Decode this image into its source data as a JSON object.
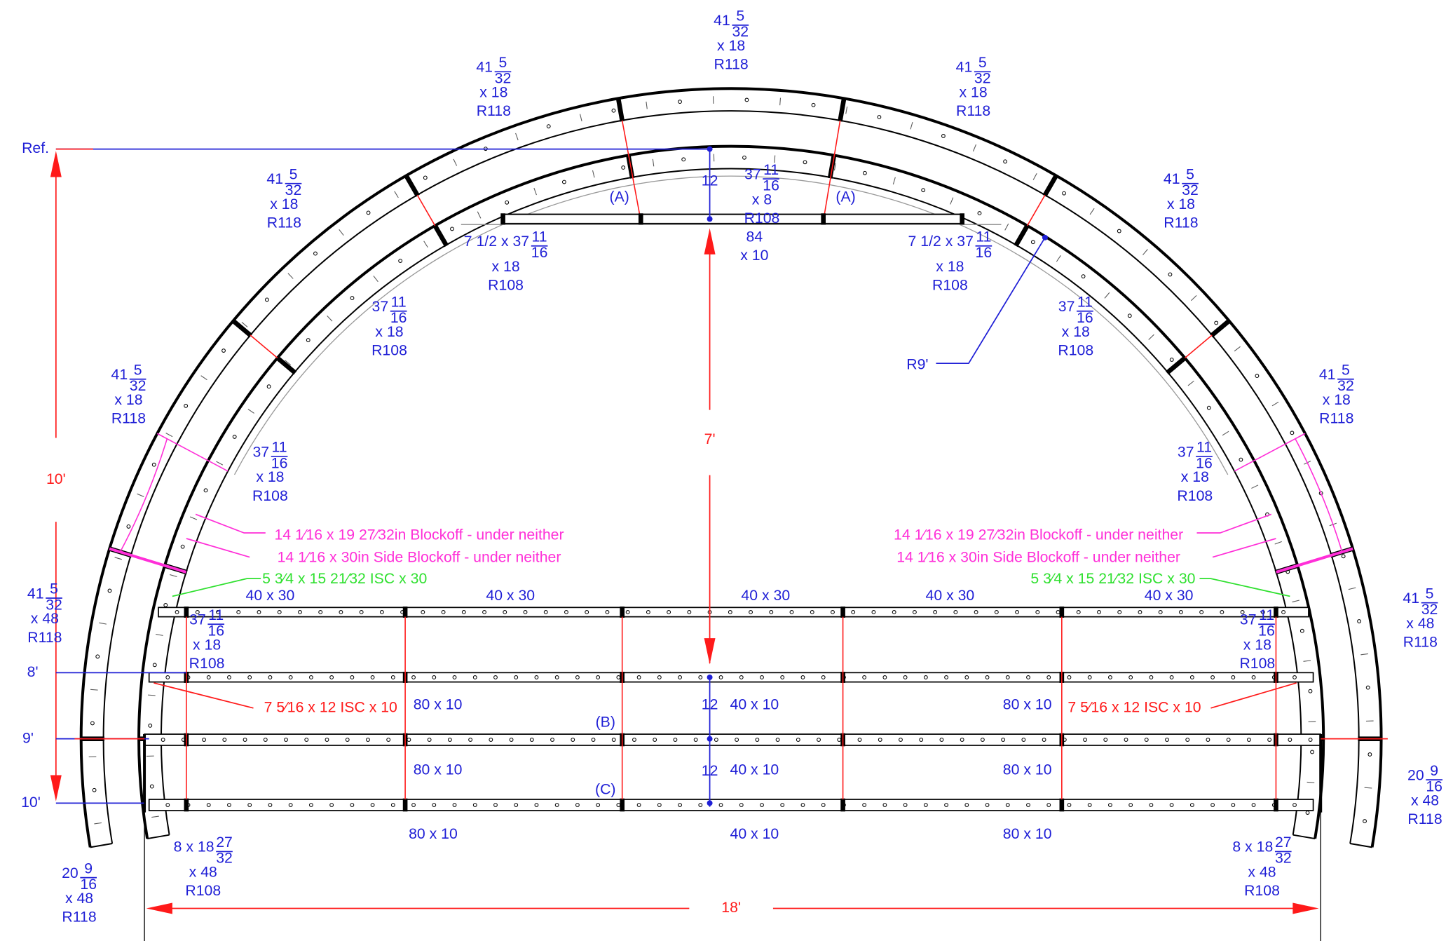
{
  "dimensions": {
    "ref": "Ref.",
    "levels": [
      "8'",
      "9'",
      "10'"
    ],
    "height": "10'",
    "rise": "7'",
    "span": "18'",
    "radius": "R9'"
  },
  "section_marks": [
    "(A)",
    "(A)",
    "(B)",
    "(C)"
  ],
  "segment_labels": [
    {
      "lines": [
        {
          "whole": "41",
          "num": "5",
          "den": "32"
        },
        "x 18",
        "R118"
      ]
    },
    {
      "lines": [
        {
          "whole": "41",
          "num": "5",
          "den": "32"
        },
        "x 18",
        "R118"
      ]
    },
    {
      "lines": [
        {
          "whole": "41",
          "num": "5",
          "den": "32"
        },
        "x 18",
        "R118"
      ]
    },
    {
      "lines": [
        {
          "whole": "41",
          "num": "5",
          "den": "32"
        },
        "x 18",
        "R118"
      ]
    },
    {
      "lines": [
        {
          "whole": "41",
          "num": "5",
          "den": "32"
        },
        "x 18",
        "R118"
      ]
    },
    {
      "lines": [
        {
          "whole": "41",
          "num": "5",
          "den": "32"
        },
        "x 18",
        "R118"
      ]
    },
    {
      "lines": [
        {
          "whole": "41",
          "num": "5",
          "den": "32"
        },
        "x 18",
        "R118"
      ]
    },
    {
      "lines": [
        {
          "whole": "41",
          "num": "5",
          "den": "32"
        },
        "x 48",
        "R118"
      ]
    },
    {
      "lines": [
        {
          "whole": "41",
          "num": "5",
          "den": "32"
        },
        "x 48",
        "R118"
      ]
    },
    {
      "lines": [
        {
          "whole": "20",
          "num": "9",
          "den": "16"
        },
        "x 48",
        "R118"
      ]
    },
    {
      "lines": [
        {
          "whole": "20",
          "num": "9",
          "den": "16"
        },
        "x 48",
        "R118"
      ]
    },
    {
      "lines": [
        {
          "whole": "37",
          "num": "11",
          "den": "16"
        },
        "x 8",
        "R108"
      ]
    },
    {
      "lines": [
        {
          "whole": "7 1/2 x 37",
          "num": "11",
          "den": "16"
        },
        "x 18",
        "R108"
      ]
    },
    {
      "lines": [
        {
          "whole": "7 1/2 x 37",
          "num": "11",
          "den": "16"
        },
        "x 18",
        "R108"
      ]
    },
    {
      "lines": [
        {
          "whole": "37",
          "num": "11",
          "den": "16"
        },
        "x 18",
        "R108"
      ]
    },
    {
      "lines": [
        {
          "whole": "37",
          "num": "11",
          "den": "16"
        },
        "x 18",
        "R108"
      ]
    },
    {
      "lines": [
        {
          "whole": "37",
          "num": "11",
          "den": "16"
        },
        "x 18",
        "R108"
      ]
    },
    {
      "lines": [
        {
          "whole": "37",
          "num": "11",
          "den": "16"
        },
        "x 18",
        "R108"
      ]
    },
    {
      "lines": [
        {
          "whole": "37",
          "num": "11",
          "den": "16"
        },
        "x 18",
        "R108"
      ]
    },
    {
      "lines": [
        {
          "whole": "37",
          "num": "11",
          "den": "16"
        },
        "x 18",
        "R108"
      ]
    },
    {
      "lines": [
        {
          "whole": "8 x 18",
          "num": "27",
          "den": "32"
        },
        "x 48",
        "R108"
      ]
    },
    {
      "lines": [
        {
          "whole": "8 x 18",
          "num": "27",
          "den": "32"
        },
        "x 48",
        "R108"
      ]
    },
    {
      "lines": [
        "84",
        "x 10"
      ]
    }
  ],
  "beam_labels": [
    "12",
    "12",
    "12",
    "40 x 30",
    "40 x 30",
    "40 x 30",
    "40 x 30",
    "40 x 30",
    "80 x 10",
    "80 x 10",
    "80 x 10",
    "80 x 10",
    "80 x 10",
    "80 x 10",
    "40 x 10",
    "40 x 10",
    "40 x 10"
  ],
  "notes": [
    "14 1⁄16 x 19 27⁄32in Blockoff - under neither",
    "14 1⁄16 x 19 27⁄32in Blockoff - under neither",
    "14 1⁄16 x 30in Side Blockoff - under neither",
    "14 1⁄16 x 30in Side Blockoff - under neither",
    "5 3⁄4 x 15 21⁄32 ISC x 30",
    "5 3⁄4 x 15 21⁄32 ISC x 30",
    "7 5⁄16 x 12 ISC x 10",
    "7 5⁄16 x 12 ISC x 10"
  ]
}
